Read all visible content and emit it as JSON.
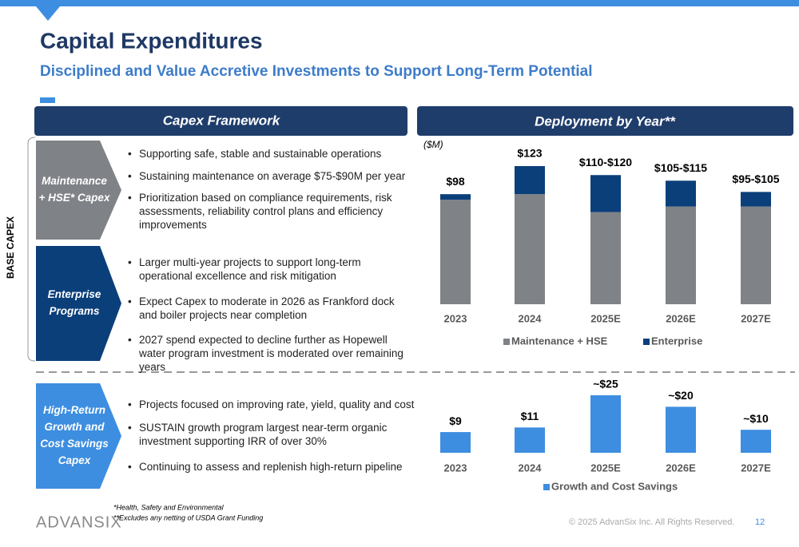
{
  "header": {
    "title": "Capital Expenditures",
    "subtitle": "Disciplined and Value Accretive Investments to Support Long-Term Potential"
  },
  "framework": {
    "title": "Capex Framework",
    "base_label": "BASE CAPEX",
    "sections": [
      {
        "label": [
          "Maintenance",
          "+ HSE* Capex"
        ],
        "bullets": [
          "Supporting safe, stable and sustainable operations",
          "Sustaining maintenance on average $75-$90M per year",
          "Prioritization based on compliance requirements, risk assessments, reliability control plans and efficiency improvements"
        ]
      },
      {
        "label": [
          "Enterprise",
          "Programs"
        ],
        "bullets": [
          "Larger multi-year projects to support long-term operational excellence and risk mitigation",
          "Expect Capex to moderate in 2026 as Frankford dock and boiler projects near completion",
          "2027 spend expected to decline further as Hopewell water program investment is moderated over remaining years"
        ]
      },
      {
        "label": [
          "High-Return",
          "Growth and",
          "Cost Savings",
          "Capex"
        ],
        "bullets": [
          "Projects focused on improving rate, yield, quality and cost",
          "SUSTAIN growth program largest near-term organic investment supporting IRR of over 30%",
          "Continuing to assess and replenish high-return pipeline"
        ]
      }
    ]
  },
  "deployment": {
    "title": "Deployment by Year**",
    "unit": "($M)"
  },
  "chart_data": [
    {
      "type": "stacked_bar",
      "categories": [
        "2023",
        "2024",
        "2025E",
        "2026E",
        "2027E"
      ],
      "series": [
        {
          "name": "Maintenance + HSE",
          "color": "#7f8286",
          "values": [
            93,
            98,
            82,
            87,
            87
          ]
        },
        {
          "name": "Enterprise",
          "color": "#0b3f7a",
          "values": [
            5,
            25,
            33,
            23,
            13
          ]
        }
      ],
      "totals": [
        98,
        123,
        115,
        110,
        100
      ],
      "total_labels": [
        "$98",
        "$123",
        "$110-$120",
        "$105-$115",
        "$95-$105"
      ]
    },
    {
      "type": "bar",
      "categories": [
        "2023",
        "2024",
        "2025E",
        "2026E",
        "2027E"
      ],
      "series": [
        {
          "name": "Growth and Cost Savings",
          "color": "#3d8ee0",
          "values": [
            9,
            11,
            25,
            20,
            10
          ],
          "value_labels": [
            "$9",
            "$11",
            "~$25",
            "~$20",
            "~$10"
          ]
        }
      ]
    }
  ],
  "footer": {
    "notes": [
      "*Health, Safety and Environmental",
      "**Excludes any netting of USDA Grant Funding"
    ],
    "logo": "ADVANSIX",
    "copyright": "© 2025 AdvanSix Inc. All Rights Reserved.",
    "page": "12"
  }
}
